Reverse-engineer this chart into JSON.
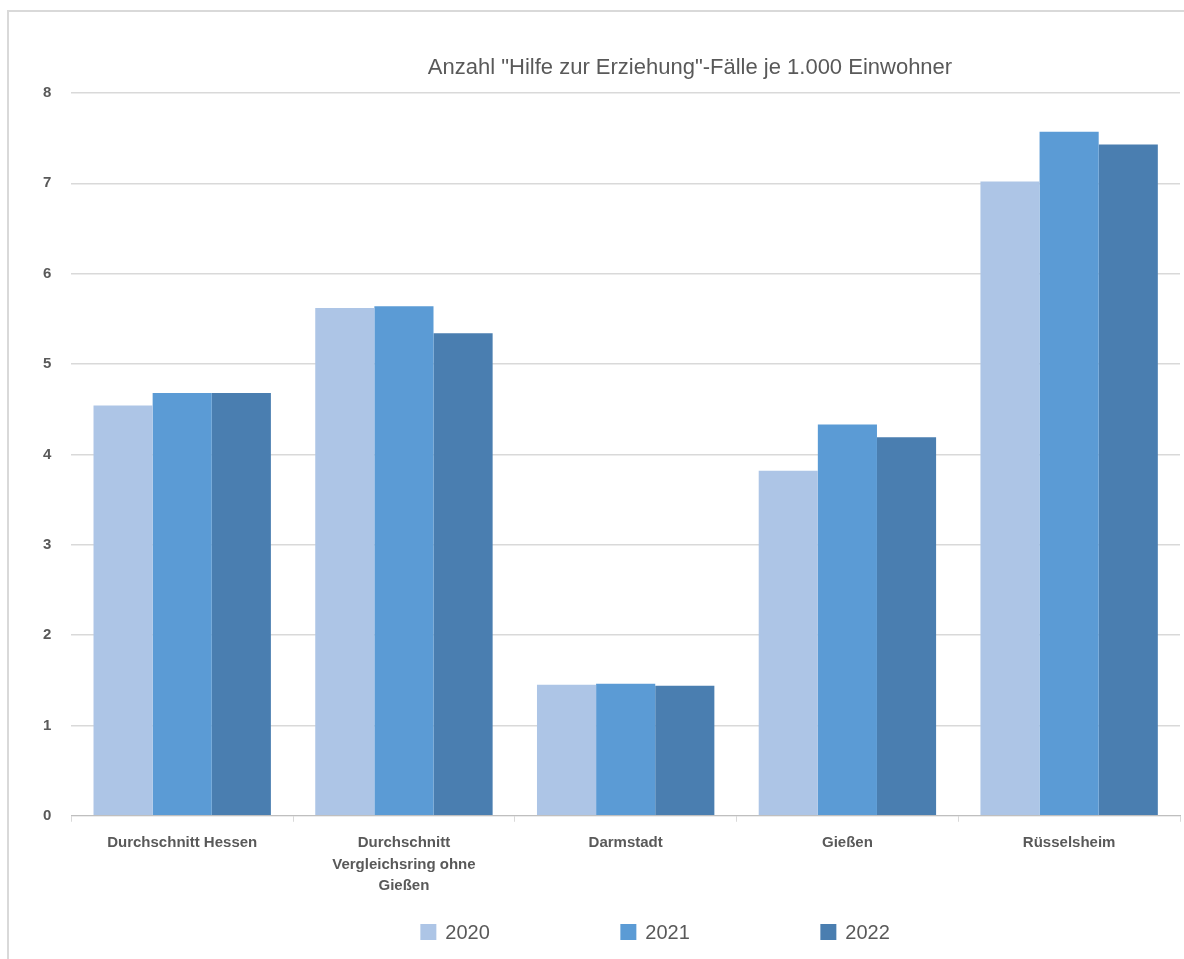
{
  "chart_data": {
    "type": "bar",
    "title": "Anzahl \"Hilfe zur Erziehung\"-Fälle je 1.000 Einwohner",
    "categories": [
      "Durchschnitt Hessen",
      "Durchschnitt Vergleichsring ohne Gießen",
      "Darmstadt",
      "Gießen",
      "Rüsselsheim"
    ],
    "series": [
      {
        "name": "2020",
        "color": "#adc5e6",
        "values": [
          4.54,
          5.62,
          1.45,
          3.82,
          7.02
        ]
      },
      {
        "name": "2021",
        "color": "#5b9bd5",
        "values": [
          4.68,
          5.64,
          1.46,
          4.33,
          7.57
        ]
      },
      {
        "name": "2022",
        "color": "#4a7eb0",
        "values": [
          4.68,
          5.34,
          1.44,
          4.19,
          7.43
        ]
      }
    ],
    "ylim": [
      0,
      8
    ],
    "yticks": [
      0,
      1,
      2,
      3,
      4,
      5,
      6,
      7,
      8
    ],
    "grid": "y",
    "legend": "bottom"
  }
}
